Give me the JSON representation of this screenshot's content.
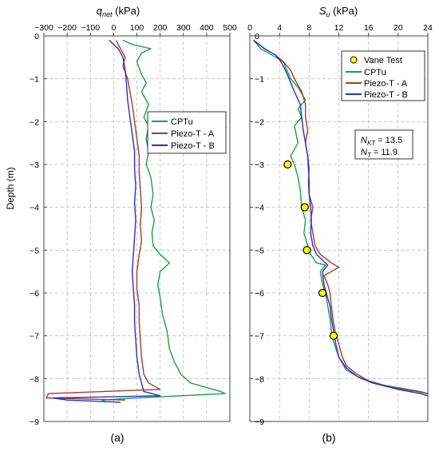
{
  "figure": {
    "panel_a_label": "(a)",
    "panel_b_label": "(b)"
  },
  "chart_data": [
    {
      "type": "line",
      "panel": "(a)",
      "title": "q_net (kPa)",
      "title_main": "q",
      "title_sub": "net",
      "title_unit": " (kPa)",
      "ylabel": "Depth (m)",
      "xlim": [
        -300,
        500
      ],
      "ylim": [
        0,
        9
      ],
      "y_inverted": true,
      "x_ticks": [
        -300,
        -200,
        -100,
        0,
        100,
        200,
        300,
        400,
        500
      ],
      "x_tick_labels": [
        "−300",
        "−200",
        "−100",
        "0",
        "100",
        "200",
        "300",
        "400",
        "500"
      ],
      "y_ticks": [
        0,
        1,
        2,
        3,
        4,
        5,
        6,
        7,
        8,
        9
      ],
      "y_tick_labels": [
        "0",
        "−1",
        "−2",
        "−3",
        "−4",
        "−5",
        "−6",
        "−7",
        "−8",
        "−9"
      ],
      "grid": true,
      "legend_position": "right-middle",
      "series": [
        {
          "name": "CPTu",
          "color": "#1e9e4a",
          "points": [
            [
              40,
              0.1
            ],
            [
              80,
              0.2
            ],
            [
              160,
              0.3
            ],
            [
              120,
              0.4
            ],
            [
              100,
              0.6
            ],
            [
              120,
              0.9
            ],
            [
              140,
              1.1
            ],
            [
              120,
              1.3
            ],
            [
              150,
              1.6
            ],
            [
              130,
              1.9
            ],
            [
              150,
              2.1
            ],
            [
              140,
              2.4
            ],
            [
              150,
              2.7
            ],
            [
              140,
              3.0
            ],
            [
              160,
              3.3
            ],
            [
              170,
              3.7
            ],
            [
              160,
              4.0
            ],
            [
              175,
              4.3
            ],
            [
              165,
              4.6
            ],
            [
              170,
              4.9
            ],
            [
              200,
              5.1
            ],
            [
              240,
              5.3
            ],
            [
              200,
              5.5
            ],
            [
              190,
              5.8
            ],
            [
              200,
              6.1
            ],
            [
              210,
              6.5
            ],
            [
              230,
              6.9
            ],
            [
              240,
              7.3
            ],
            [
              260,
              7.6
            ],
            [
              290,
              7.9
            ],
            [
              330,
              8.1
            ],
            [
              460,
              8.3
            ],
            [
              480,
              8.35
            ],
            [
              100,
              8.45
            ],
            [
              -50,
              8.5
            ],
            [
              -30,
              8.55
            ]
          ]
        },
        {
          "name": "Piezo-T - A",
          "color": "#a83a2a",
          "points": [
            [
              10,
              0.1
            ],
            [
              30,
              0.3
            ],
            [
              50,
              0.5
            ],
            [
              40,
              0.7
            ],
            [
              60,
              1.0
            ],
            [
              70,
              1.3
            ],
            [
              80,
              1.6
            ],
            [
              90,
              2.0
            ],
            [
              100,
              2.4
            ],
            [
              110,
              2.8
            ],
            [
              110,
              3.2
            ],
            [
              115,
              3.6
            ],
            [
              120,
              4.0
            ],
            [
              115,
              4.4
            ],
            [
              120,
              4.8
            ],
            [
              110,
              5.1
            ],
            [
              100,
              5.5
            ],
            [
              100,
              5.9
            ],
            [
              110,
              6.3
            ],
            [
              110,
              6.7
            ],
            [
              115,
              7.1
            ],
            [
              120,
              7.5
            ],
            [
              130,
              7.9
            ],
            [
              150,
              8.1
            ],
            [
              200,
              8.25
            ],
            [
              -280,
              8.35
            ],
            [
              -290,
              8.45
            ],
            [
              50,
              8.5
            ]
          ]
        },
        {
          "name": "Piezo-T - B",
          "color": "#2233cc",
          "points": [
            [
              -20,
              0.1
            ],
            [
              20,
              0.3
            ],
            [
              40,
              0.5
            ],
            [
              50,
              0.8
            ],
            [
              55,
              1.1
            ],
            [
              60,
              1.5
            ],
            [
              70,
              1.9
            ],
            [
              80,
              2.3
            ],
            [
              90,
              2.7
            ],
            [
              90,
              3.1
            ],
            [
              95,
              3.5
            ],
            [
              90,
              3.9
            ],
            [
              95,
              4.3
            ],
            [
              90,
              4.7
            ],
            [
              85,
              5.1
            ],
            [
              80,
              5.5
            ],
            [
              85,
              5.9
            ],
            [
              90,
              6.3
            ],
            [
              90,
              6.7
            ],
            [
              95,
              7.1
            ],
            [
              100,
              7.5
            ],
            [
              110,
              7.9
            ],
            [
              120,
              8.1
            ],
            [
              130,
              8.3
            ],
            [
              200,
              8.4
            ],
            [
              -260,
              8.45
            ],
            [
              -200,
              8.5
            ],
            [
              30,
              8.55
            ]
          ]
        }
      ]
    },
    {
      "type": "line",
      "panel": "(b)",
      "title": "S_u (kPa)",
      "title_main": "S",
      "title_sub": "u",
      "title_unit": " (kPa)",
      "xlim": [
        0,
        24
      ],
      "ylim": [
        0,
        9
      ],
      "y_inverted": true,
      "x_ticks": [
        0,
        4,
        8,
        12,
        16,
        20,
        24
      ],
      "x_tick_labels": [
        "0",
        "4",
        "8",
        "12",
        "16",
        "20",
        "24"
      ],
      "y_ticks": [
        0,
        1,
        2,
        3,
        4,
        5,
        6,
        7,
        8,
        9
      ],
      "y_tick_labels": [
        "0",
        "−1",
        "−2",
        "−3",
        "−4",
        "−5",
        "−6",
        "−7",
        "−8",
        "−9"
      ],
      "grid": true,
      "legend_position": "top-right",
      "annotation": {
        "nkt_label": "N",
        "nkt_sub": "KT",
        "nkt_value": " = 13.5",
        "nt_label": "N",
        "nt_sub": "T",
        "nt_value": " = 11.9"
      },
      "series": [
        {
          "name": "Vane Test",
          "type": "scatter",
          "color": "#ffff00",
          "points": [
            [
              5.1,
              3.0
            ],
            [
              7.4,
              4.0
            ],
            [
              7.7,
              5.0
            ],
            [
              9.8,
              6.0
            ],
            [
              11.3,
              7.0
            ]
          ]
        },
        {
          "name": "CPTu",
          "color": "#1e9e4a",
          "points": [
            [
              0.5,
              0.1
            ],
            [
              1.5,
              0.3
            ],
            [
              3.0,
              0.45
            ],
            [
              4.5,
              0.6
            ],
            [
              5.0,
              0.8
            ],
            [
              5.5,
              1.0
            ],
            [
              6.5,
              1.2
            ],
            [
              7.5,
              1.5
            ],
            [
              6.5,
              1.7
            ],
            [
              7.0,
              1.9
            ],
            [
              6.0,
              2.1
            ],
            [
              6.5,
              2.5
            ],
            [
              5.5,
              2.8
            ],
            [
              6.0,
              3.0
            ],
            [
              6.5,
              3.3
            ],
            [
              6.8,
              3.6
            ],
            [
              7.0,
              4.0
            ],
            [
              7.5,
              4.3
            ],
            [
              7.3,
              4.6
            ],
            [
              7.8,
              4.9
            ],
            [
              8.2,
              5.1
            ],
            [
              9.0,
              5.3
            ],
            [
              10.2,
              5.35
            ],
            [
              9.5,
              5.5
            ],
            [
              9.8,
              5.8
            ],
            [
              10.2,
              6.0
            ],
            [
              10.5,
              6.3
            ],
            [
              10.8,
              6.6
            ],
            [
              11.0,
              6.9
            ],
            [
              11.4,
              7.2
            ],
            [
              12.0,
              7.5
            ],
            [
              13.0,
              7.8
            ],
            [
              15.0,
              8.0
            ],
            [
              18.0,
              8.15
            ],
            [
              23.0,
              8.3
            ],
            [
              24.0,
              8.35
            ]
          ]
        },
        {
          "name": "Piezo-T - A",
          "color": "#a83a2a",
          "points": [
            [
              0.5,
              0.1
            ],
            [
              2.0,
              0.3
            ],
            [
              3.5,
              0.45
            ],
            [
              4.5,
              0.6
            ],
            [
              5.5,
              0.8
            ],
            [
              6.0,
              1.0
            ],
            [
              7.0,
              1.3
            ],
            [
              7.5,
              1.6
            ],
            [
              7.5,
              1.9
            ],
            [
              7.8,
              2.2
            ],
            [
              7.5,
              2.5
            ],
            [
              7.8,
              2.8
            ],
            [
              8.0,
              3.1
            ],
            [
              7.9,
              3.4
            ],
            [
              8.0,
              3.7
            ],
            [
              8.5,
              4.0
            ],
            [
              8.2,
              4.3
            ],
            [
              8.5,
              4.6
            ],
            [
              8.8,
              4.9
            ],
            [
              9.5,
              5.1
            ],
            [
              11.0,
              5.3
            ],
            [
              12.0,
              5.4
            ],
            [
              10.0,
              5.6
            ],
            [
              10.5,
              5.8
            ],
            [
              10.8,
              6.0
            ],
            [
              11.0,
              6.3
            ],
            [
              11.2,
              6.6
            ],
            [
              11.5,
              6.9
            ],
            [
              12.0,
              7.2
            ],
            [
              12.5,
              7.5
            ],
            [
              13.0,
              7.7
            ],
            [
              14.5,
              7.9
            ],
            [
              16.0,
              8.05
            ],
            [
              19.0,
              8.2
            ],
            [
              22.5,
              8.3
            ],
            [
              24.0,
              8.35
            ]
          ]
        },
        {
          "name": "Piezo-T - B",
          "color": "#2233cc",
          "points": [
            [
              0.5,
              0.1
            ],
            [
              2.0,
              0.3
            ],
            [
              3.5,
              0.45
            ],
            [
              4.2,
              0.6
            ],
            [
              4.8,
              0.8
            ],
            [
              5.3,
              1.0
            ],
            [
              6.0,
              1.3
            ],
            [
              6.8,
              1.6
            ],
            [
              7.0,
              1.9
            ],
            [
              7.2,
              2.2
            ],
            [
              7.5,
              2.5
            ],
            [
              7.8,
              2.8
            ],
            [
              7.9,
              3.1
            ],
            [
              8.0,
              3.4
            ],
            [
              8.0,
              3.7
            ],
            [
              8.2,
              4.0
            ],
            [
              8.3,
              4.3
            ],
            [
              8.2,
              4.6
            ],
            [
              8.5,
              4.9
            ],
            [
              9.0,
              5.1
            ],
            [
              10.5,
              5.35
            ],
            [
              9.8,
              5.5
            ],
            [
              10.0,
              5.8
            ],
            [
              10.3,
              6.0
            ],
            [
              10.8,
              6.3
            ],
            [
              11.0,
              6.6
            ],
            [
              11.3,
              6.9
            ],
            [
              11.6,
              7.2
            ],
            [
              12.0,
              7.5
            ],
            [
              13.0,
              7.75
            ],
            [
              14.5,
              7.95
            ],
            [
              16.5,
              8.1
            ],
            [
              20.0,
              8.25
            ],
            [
              23.0,
              8.35
            ],
            [
              24.0,
              8.4
            ]
          ]
        }
      ]
    }
  ]
}
